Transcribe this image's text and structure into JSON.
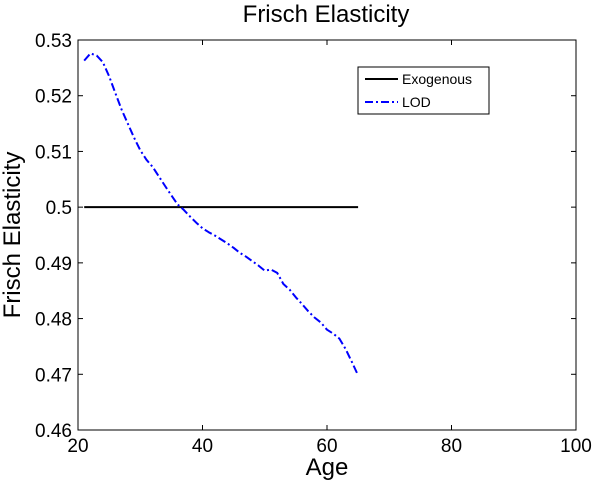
{
  "chart_data": {
    "type": "line",
    "title": "Frisch Elasticity",
    "xlabel": "Age",
    "ylabel": "Frisch Elasticity",
    "xlim": [
      20,
      100
    ],
    "ylim": [
      0.46,
      0.53
    ],
    "xticks": [
      "20",
      "40",
      "60",
      "80",
      "100"
    ],
    "yticks": [
      "0.46",
      "0.47",
      "0.48",
      "0.49",
      "0.5",
      "0.51",
      "0.52",
      "0.53"
    ],
    "grid": false,
    "legend_position": "top-right",
    "series": [
      {
        "name": "Exogenous",
        "color": "#000000",
        "style": "solid",
        "x": [
          21,
          65
        ],
        "y": [
          0.5,
          0.5
        ]
      },
      {
        "name": "LOD",
        "color": "#0000ff",
        "style": "dashdot",
        "x": [
          21,
          22,
          23,
          24,
          25,
          26,
          27,
          28,
          29,
          30,
          31,
          32,
          33,
          34,
          35,
          36,
          37,
          38,
          39,
          40,
          41,
          42,
          43,
          44,
          45,
          46,
          47,
          48,
          49,
          50,
          51,
          52,
          53,
          54,
          55,
          56,
          57,
          58,
          59,
          60,
          61,
          62,
          63,
          64,
          65
        ],
        "y": [
          0.5263,
          0.5276,
          0.5272,
          0.526,
          0.5235,
          0.5205,
          0.5175,
          0.515,
          0.5125,
          0.5102,
          0.5085,
          0.5072,
          0.5055,
          0.5038,
          0.5021,
          0.5005,
          0.4995,
          0.4983,
          0.4972,
          0.4962,
          0.4955,
          0.4949,
          0.4942,
          0.4935,
          0.4927,
          0.4918,
          0.4911,
          0.4903,
          0.4895,
          0.4886,
          0.4888,
          0.4882,
          0.4862,
          0.4852,
          0.4838,
          0.4826,
          0.4813,
          0.4802,
          0.4793,
          0.478,
          0.4773,
          0.4764,
          0.4745,
          0.4722,
          0.4698
        ]
      }
    ]
  }
}
